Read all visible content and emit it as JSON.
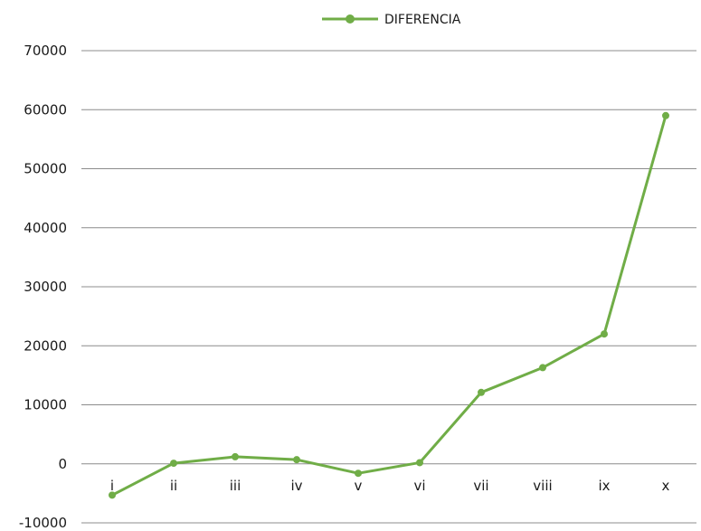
{
  "chart_data": {
    "type": "line",
    "categories": [
      "i",
      "ii",
      "iii",
      "iv",
      "v",
      "vi",
      "vii",
      "viii",
      "ix",
      "x"
    ],
    "series": [
      {
        "name": "DIFERENCIA",
        "color": "#70ad47",
        "values": [
          -5300,
          100,
          1200,
          700,
          -1600,
          200,
          12100,
          16300,
          22000,
          59000
        ]
      }
    ],
    "y_ticks": [
      "70000",
      "60000",
      "50000",
      "40000",
      "30000",
      "20000",
      "10000",
      "0",
      "-10000"
    ],
    "ylim": [
      -10000,
      70000
    ],
    "grid": true,
    "legend_position": "top-center",
    "title": "",
    "xlabel": "",
    "ylabel": ""
  }
}
